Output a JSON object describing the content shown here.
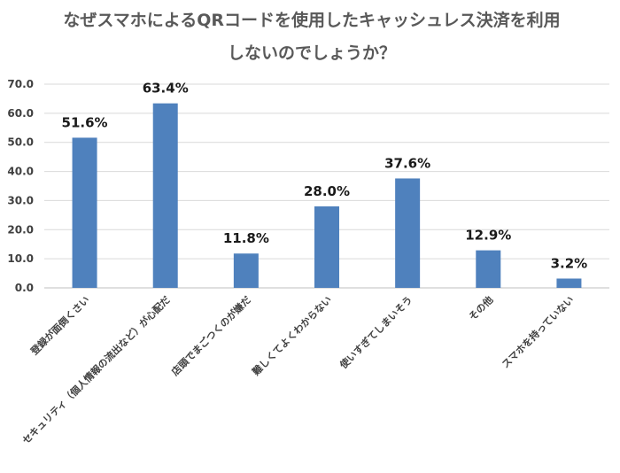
{
  "chart_data": {
    "type": "bar",
    "title_lines": [
      "なぜスマホによるQRコードを使用したキャッシュレス決済を利用",
      "しないのでしょうか？"
    ],
    "categories": [
      "登録が面倒くさい",
      "セキュリティ（個人情報の流出など）が心配だ",
      "店頭でまごつくのが嫌だ",
      "難しくてよくわからない",
      "使いすぎてしまいそう",
      "その他",
      "スマホを持っていない"
    ],
    "values": [
      51.6,
      63.4,
      11.8,
      28.0,
      37.6,
      12.9,
      3.2
    ],
    "data_labels": [
      "51.6%",
      "63.4%",
      "11.8%",
      "28.0%",
      "37.6%",
      "12.9%",
      "3.2%"
    ],
    "y_ticks": [
      "0.0",
      "10.0",
      "20.0",
      "30.0",
      "40.0",
      "50.0",
      "60.0",
      "70.0"
    ],
    "ylim": [
      0,
      70
    ],
    "grid": true,
    "legend": "none",
    "bar_color": "#4f81bd"
  }
}
